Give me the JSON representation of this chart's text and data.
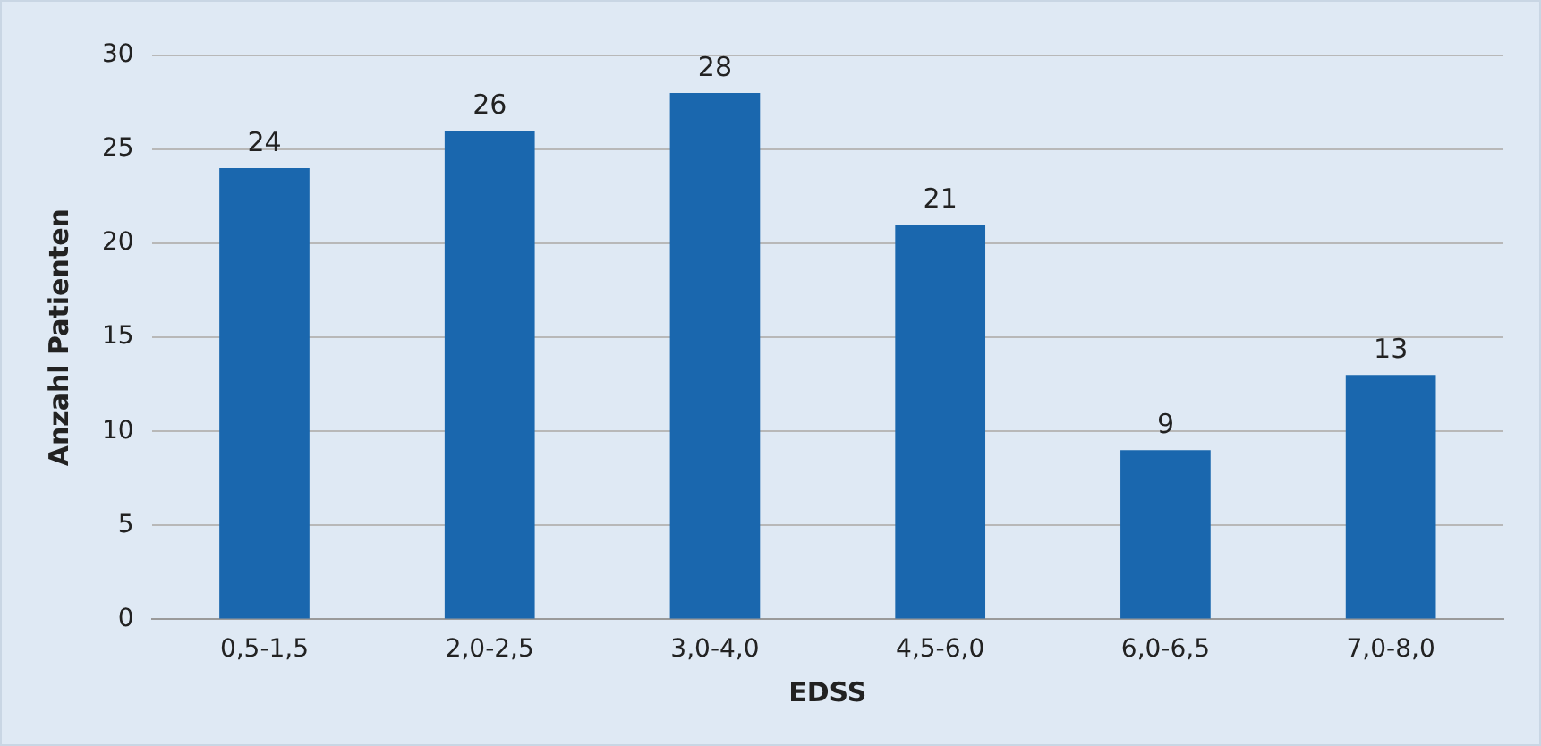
{
  "chart_data": {
    "type": "bar",
    "xlabel": "EDSS",
    "ylabel": "Anzahl Patienten",
    "categories": [
      "0,5-1,5",
      "2,0-2,5",
      "3,0-4,0",
      "4,5-6,0",
      "6,0-6,5",
      "7,0-8,0"
    ],
    "values": [
      24,
      26,
      28,
      21,
      9,
      13
    ],
    "color": "#1a67ae",
    "ylim": [
      0,
      30
    ],
    "yticks": [
      0,
      5,
      10,
      15,
      20,
      25,
      30
    ],
    "grid": "y",
    "data_labels": true
  }
}
